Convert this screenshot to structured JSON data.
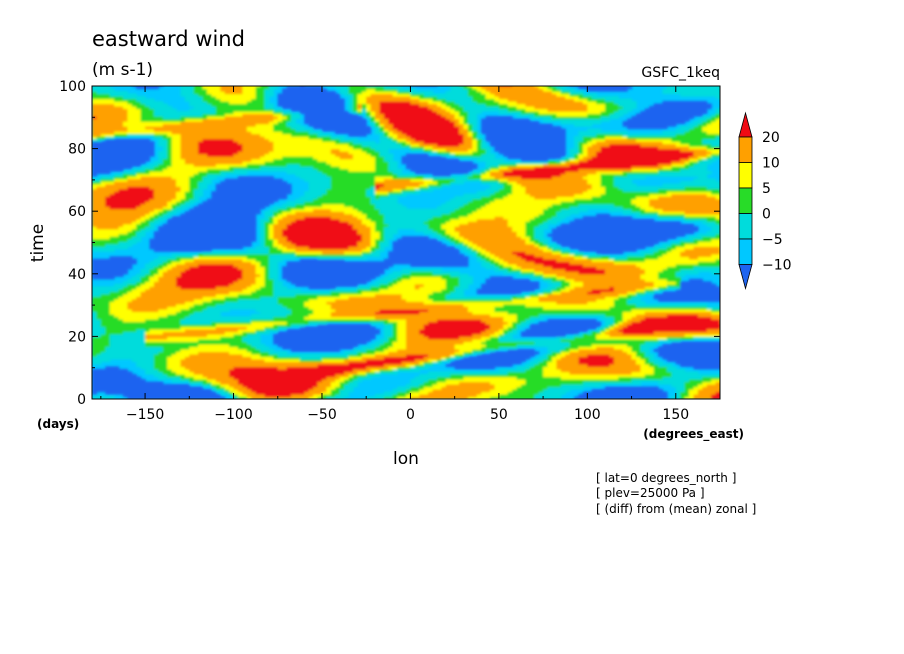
{
  "chart_data": {
    "type": "heatmap",
    "title": "eastward wind",
    "units": "(m s-1)",
    "model_label": "GSFC_1keq",
    "xlabel": "lon",
    "x_unit": "(degrees_east)",
    "ylabel": "time",
    "y_unit": "(days)",
    "xlim": [
      -180,
      175
    ],
    "ylim": [
      0,
      100
    ],
    "x_ticks": [
      -150,
      -100,
      -50,
      0,
      50,
      100,
      150
    ],
    "y_ticks": [
      0,
      20,
      40,
      60,
      80,
      100
    ],
    "x_tick_labels": [
      "−150",
      "−100",
      "−50",
      "0",
      "50",
      "100",
      "150"
    ],
    "y_tick_labels": [
      "0",
      "20",
      "40",
      "60",
      "80",
      "100"
    ],
    "levels": [
      -10,
      -5,
      0,
      5,
      10,
      20
    ],
    "level_labels": [
      "−10",
      "−5",
      "0",
      "5",
      "10",
      "20"
    ],
    "colors": [
      "#1e64f0",
      "#00c8ff",
      "#00dcdc",
      "#28dc28",
      "#ffff00",
      "#ffa000",
      "#f00a14"
    ],
    "colorbar": {
      "position": "right",
      "extend": "both"
    },
    "notes": [
      "[ lat=0 degrees_north ]",
      "[ plev=25000 Pa ]",
      "[ (diff) from (mean) zonal ]"
    ],
    "features": [
      {
        "kind": "eastward-propagating band",
        "from": [
          -60,
          8
        ],
        "to": [
          125,
          22
        ],
        "peak": 22
      },
      {
        "kind": "eastward-propagating band",
        "from": [
          -140,
          20
        ],
        "to": [
          140,
          36
        ],
        "peak": 15
      },
      {
        "kind": "eastward-propagating band",
        "from": [
          -10,
          68
        ],
        "to": [
          175,
          79
        ],
        "peak": 22
      },
      {
        "kind": "eastward-propagating band",
        "from": [
          -180,
          84
        ],
        "to": [
          -40,
          92
        ],
        "peak": 14
      }
    ]
  }
}
